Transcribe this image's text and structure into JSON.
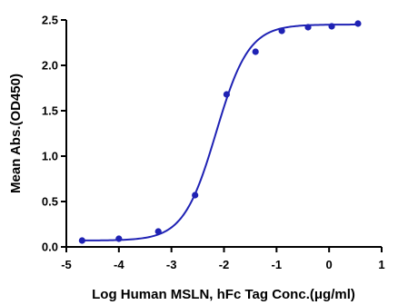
{
  "chart_data": {
    "type": "scatter",
    "xlabel": "Log Human MSLN, hFc Tag Conc.(μg/ml)",
    "ylabel": "Mean Abs.(OD450)",
    "xlim": [
      -5,
      1
    ],
    "ylim": [
      0,
      2.5
    ],
    "x_ticks": [
      -5,
      -4,
      -3,
      -2,
      -1,
      0,
      1
    ],
    "y_ticks": [
      0.0,
      0.5,
      1.0,
      1.5,
      2.0,
      2.5
    ],
    "x_tick_labels": [
      "-5",
      "-4",
      "-3",
      "-2",
      "-1",
      "0",
      "1"
    ],
    "y_tick_labels": [
      "0.0",
      "0.5",
      "1.0",
      "1.5",
      "2.0",
      "2.5"
    ],
    "grid": false,
    "series": [
      {
        "points": [
          {
            "x": -4.7,
            "y": 0.07
          },
          {
            "x": -4.0,
            "y": 0.09
          },
          {
            "x": -3.25,
            "y": 0.17
          },
          {
            "x": -2.55,
            "y": 0.57
          },
          {
            "x": -1.95,
            "y": 1.68
          },
          {
            "x": -1.4,
            "y": 2.15
          },
          {
            "x": -0.9,
            "y": 2.38
          },
          {
            "x": -0.4,
            "y": 2.42
          },
          {
            "x": 0.05,
            "y": 2.43
          },
          {
            "x": 0.55,
            "y": 2.46
          }
        ],
        "fit": {
          "model": "4PL",
          "bottom": 0.07,
          "top": 2.45,
          "logEC50": -2.15,
          "hill": 1.4,
          "x_range": [
            -4.7,
            0.55
          ]
        }
      }
    ],
    "colors": {
      "series": "#1f22b4",
      "axis": "#000000"
    }
  }
}
